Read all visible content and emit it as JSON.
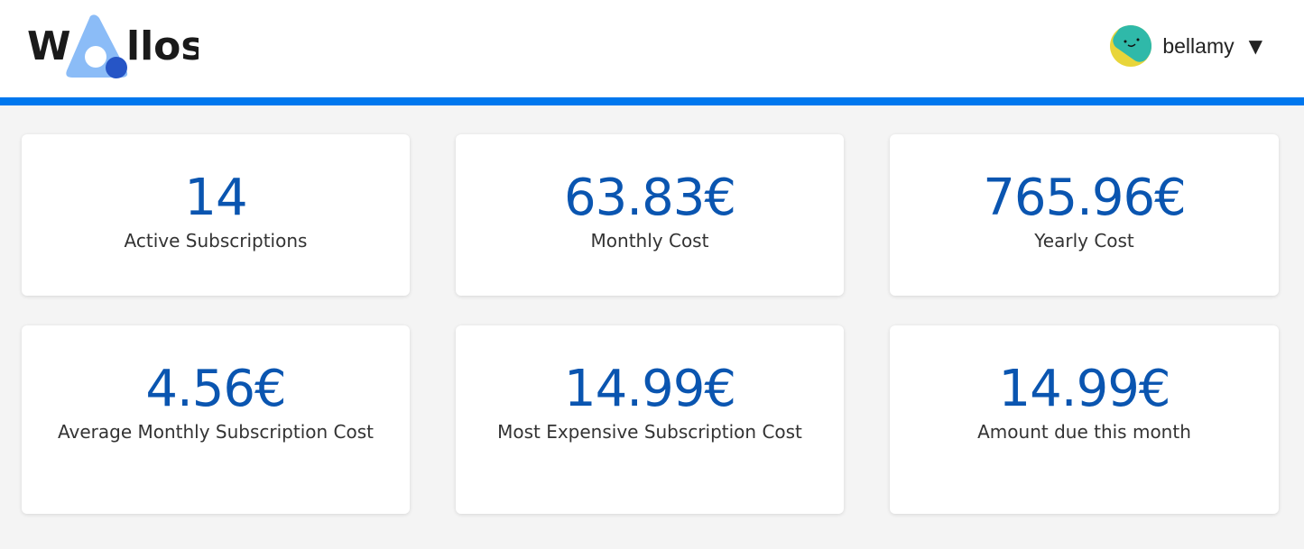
{
  "header": {
    "logo_text": "Wallos",
    "user": {
      "name": "bellamy",
      "caret": "▼"
    }
  },
  "colors": {
    "accent": "#0077ee",
    "value": "#0a55b0"
  },
  "stats": [
    {
      "value": "14",
      "label": "Active Subscriptions"
    },
    {
      "value": "63.83€",
      "label": "Monthly Cost"
    },
    {
      "value": "765.96€",
      "label": "Yearly Cost"
    },
    {
      "value": "4.56€",
      "label": "Average Monthly Subscription Cost"
    },
    {
      "value": "14.99€",
      "label": "Most Expensive Subscription Cost"
    },
    {
      "value": "14.99€",
      "label": "Amount due this month"
    }
  ]
}
